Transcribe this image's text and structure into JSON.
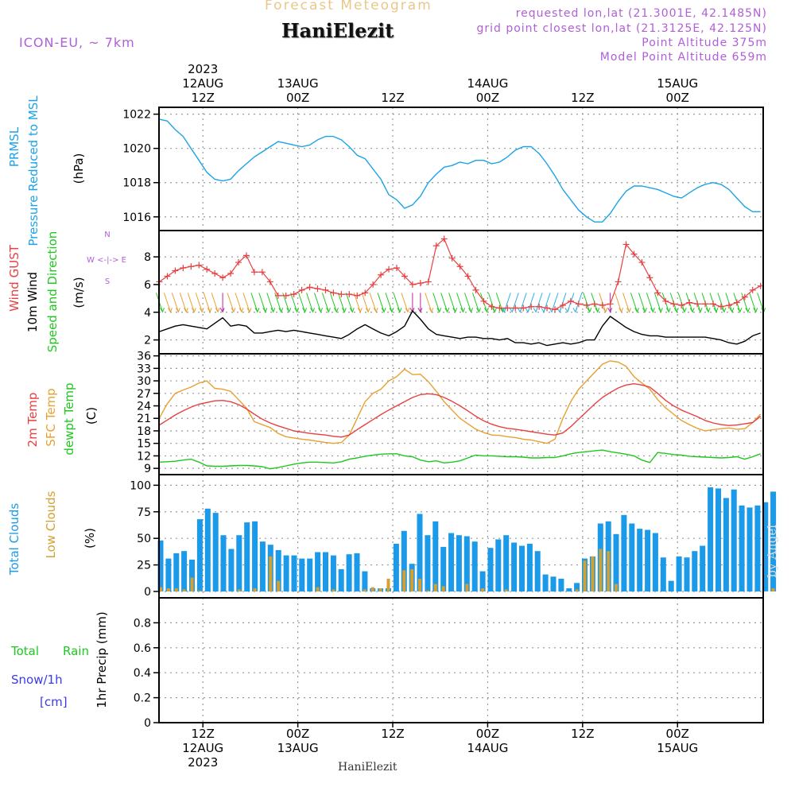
{
  "header": {
    "title": "Forecast Meteogram",
    "station": "HaniElezit",
    "model": "ICON-EU, ~ 7km",
    "requested": "requested lon,lat (21.3001E, 42.1485N)",
    "grid_point": "grid point closest lon,lat (21.3125E, 42.125N)",
    "point_altitude": "Point Altitude 375m",
    "model_altitude": "Model Point Altitude 659m"
  },
  "footer": {
    "station": "HaniElezit",
    "watermark": "by Angel"
  },
  "colors": {
    "pressure": "#1aa3e8",
    "gust": "#e84040",
    "wind": "#000000",
    "dir_green": "#1ec81e",
    "temp2m": "#e84040",
    "sfc": "#e8a030",
    "dewpt": "#1ec81e",
    "total_clouds": "#1a9ae8",
    "low_clouds": "#d4a030",
    "rain": "#1ec81e",
    "snow": "#3a3ae8",
    "purple": "#b05fd6"
  },
  "time_axis": {
    "top_labels": [
      {
        "lines": [
          "2023",
          "12AUG",
          "12Z"
        ]
      },
      {
        "lines": [
          "13AUG",
          "00Z"
        ]
      },
      {
        "lines": [
          "12Z"
        ]
      },
      {
        "lines": [
          "14AUG",
          "00Z"
        ]
      },
      {
        "lines": [
          "12Z"
        ]
      },
      {
        "lines": [
          "15AUG",
          "00Z"
        ]
      }
    ],
    "bottom_labels": [
      {
        "lines": [
          "12Z",
          "12AUG",
          "2023"
        ]
      },
      {
        "lines": [
          "00Z",
          "13AUG"
        ]
      },
      {
        "lines": [
          "12Z"
        ]
      },
      {
        "lines": [
          "00Z",
          "14AUG"
        ]
      },
      {
        "lines": [
          "12Z"
        ]
      },
      {
        "lines": [
          "00Z",
          "15AUG"
        ]
      }
    ]
  },
  "panels": {
    "pressure": {
      "label1": "PRMSL",
      "label2": "Pressure Reduced to MSL",
      "unit": "(hPa)"
    },
    "wind": {
      "label_gust": "Wind GUST",
      "label_wind": "10m Wind",
      "label_dir": "Speed and Direction",
      "unit": "(m/s)",
      "compass_n": "N",
      "compass_s": "S",
      "compass_we": "W <-|-> E"
    },
    "temp": {
      "label1": "2m Temp",
      "label2": "SFC Temp",
      "label3": "dewpt Temp",
      "unit": "(C)"
    },
    "clouds": {
      "label1": "Total Clouds",
      "label2": "Low Clouds",
      "unit": "(%)"
    },
    "precip": {
      "label_total": "Total",
      "label_rain": "Rain",
      "label_snow": "Snow/1h",
      "label_cm": "[cm]",
      "unit": "1hr Precip (mm)"
    }
  },
  "chart_data": [
    {
      "type": "line",
      "name": "pressure",
      "x_hours": [
        0,
        1,
        2,
        3,
        4,
        5,
        6,
        7,
        8,
        9,
        10,
        11,
        12,
        13,
        14,
        15,
        16,
        17,
        18,
        19,
        20,
        21,
        22,
        23,
        24,
        25,
        26,
        27,
        28,
        29,
        30,
        31,
        32,
        33,
        34,
        35,
        36,
        37,
        38,
        39,
        40,
        41,
        42,
        43,
        44,
        45,
        46,
        47,
        48,
        49,
        50,
        51,
        52,
        53,
        54,
        55,
        56,
        57,
        58,
        59,
        60,
        61,
        62,
        63,
        64,
        65,
        66,
        67,
        68,
        69,
        70,
        71,
        72,
        73,
        74,
        75,
        76
      ],
      "ylabel": "(hPa)",
      "ylim": [
        1015.2,
        1022.4
      ],
      "yticks": [
        1016,
        1018,
        1020,
        1022
      ],
      "series": [
        {
          "values": [
            1021.7,
            1021.6,
            1021.1,
            1020.7,
            1020.0,
            1019.3,
            1018.6,
            1018.2,
            1018.1,
            1018.2,
            1018.7,
            1019.1,
            1019.5,
            1019.8,
            1020.1,
            1020.4,
            1020.3,
            1020.2,
            1020.1,
            1020.2,
            1020.5,
            1020.7,
            1020.7,
            1020.5,
            1020.1,
            1019.6,
            1019.4,
            1018.8,
            1018.2,
            1017.3,
            1017.0,
            1016.5,
            1016.7,
            1017.2,
            1018.0,
            1018.5,
            1018.9,
            1019.0,
            1019.2,
            1019.1,
            1019.3,
            1019.3,
            1019.1,
            1019.2,
            1019.5,
            1019.9,
            1020.1,
            1020.1,
            1019.7,
            1019.1,
            1018.4,
            1017.6,
            1017.0,
            1016.4,
            1016.0,
            1015.7,
            1015.7,
            1016.2,
            1016.9,
            1017.5,
            1017.8,
            1017.8,
            1017.7,
            1017.6,
            1017.4,
            1017.2,
            1017.1,
            1017.4,
            1017.7,
            1017.9,
            1018.0,
            1017.9,
            1017.6,
            1017.1,
            1016.6,
            1016.3,
            1016.3
          ]
        }
      ]
    },
    {
      "type": "line",
      "name": "wind",
      "ylabel": "(m/s)",
      "ylim": [
        1.0,
        9.9
      ],
      "yticks": [
        2,
        4,
        6,
        8
      ],
      "series": [
        {
          "name": "Wind GUST",
          "values": [
            6.2,
            6.6,
            7.0,
            7.2,
            7.3,
            7.4,
            7.1,
            6.8,
            6.5,
            6.8,
            7.6,
            8.1,
            6.9,
            6.9,
            6.2,
            5.2,
            5.2,
            5.3,
            5.6,
            5.8,
            5.7,
            5.6,
            5.4,
            5.3,
            5.3,
            5.2,
            5.4,
            6.0,
            6.7,
            7.1,
            7.2,
            6.6,
            6.0,
            6.1,
            6.2,
            8.8,
            9.3,
            7.9,
            7.3,
            6.6,
            5.6,
            4.8,
            4.4,
            4.3,
            4.3,
            4.3,
            4.3,
            4.4,
            4.4,
            4.3,
            4.2,
            4.5,
            4.8,
            4.6,
            4.5,
            4.6,
            4.5,
            4.6,
            6.2,
            8.9,
            8.2,
            7.6,
            6.5,
            5.4,
            4.8,
            4.6,
            4.5,
            4.7,
            4.6,
            4.6,
            4.6,
            4.4,
            4.5,
            4.7,
            5.1,
            5.6,
            5.9
          ]
        },
        {
          "name": "10m Wind",
          "values": [
            2.6,
            2.8,
            3.0,
            3.1,
            3.0,
            2.9,
            2.8,
            3.2,
            3.6,
            3.0,
            3.1,
            3.0,
            2.5,
            2.5,
            2.6,
            2.7,
            2.6,
            2.7,
            2.6,
            2.5,
            2.4,
            2.3,
            2.2,
            2.1,
            2.4,
            2.8,
            3.1,
            2.8,
            2.5,
            2.3,
            2.6,
            3.0,
            4.1,
            3.5,
            2.8,
            2.4,
            2.3,
            2.2,
            2.1,
            2.2,
            2.2,
            2.1,
            2.1,
            2.0,
            2.1,
            1.8,
            1.8,
            1.7,
            1.8,
            1.6,
            1.7,
            1.8,
            1.7,
            1.8,
            2.0,
            2.0,
            3.0,
            3.7,
            3.3,
            2.9,
            2.6,
            2.4,
            2.3,
            2.3,
            2.2,
            2.2,
            2.2,
            2.2,
            2.2,
            2.2,
            2.1,
            2.0,
            1.8,
            1.7,
            1.9,
            2.3,
            2.5
          ]
        }
      ]
    },
    {
      "type": "line",
      "name": "temperature",
      "ylabel": "(C)",
      "ylim": [
        7.5,
        36.5
      ],
      "yticks": [
        9,
        12,
        15,
        18,
        21,
        24,
        27,
        30,
        33,
        36
      ],
      "series": [
        {
          "name": "2m Temp",
          "values": [
            19.4,
            20.6,
            21.8,
            22.8,
            23.7,
            24.4,
            24.8,
            25.2,
            25.3,
            25.0,
            24.3,
            23.3,
            22.0,
            20.8,
            19.9,
            19.2,
            18.6,
            18.0,
            17.7,
            17.4,
            17.2,
            17.0,
            16.7,
            16.5,
            17.0,
            18.3,
            19.5,
            20.7,
            21.9,
            23.0,
            24.0,
            25.0,
            26.0,
            26.7,
            26.9,
            26.7,
            26.0,
            25.1,
            24.0,
            22.8,
            21.5,
            20.4,
            19.6,
            19.0,
            18.6,
            18.4,
            18.1,
            17.8,
            17.5,
            17.2,
            17.0,
            17.5,
            19.0,
            20.8,
            22.6,
            24.4,
            26.0,
            27.2,
            28.3,
            29.0,
            29.3,
            29.0,
            28.5,
            27.0,
            25.3,
            24.0,
            23.0,
            22.2,
            21.4,
            20.5,
            19.9,
            19.5,
            19.3,
            19.4,
            19.7,
            20.0,
            21.5
          ]
        },
        {
          "name": "SFC Temp",
          "values": [
            21.1,
            24.5,
            27.0,
            27.8,
            28.5,
            29.5,
            30.0,
            28.2,
            28.0,
            27.5,
            25.5,
            23.5,
            20.2,
            19.5,
            18.8,
            17.4,
            16.6,
            16.3,
            16.0,
            15.8,
            15.5,
            15.2,
            15.0,
            15.2,
            17.0,
            21.0,
            25.0,
            27.0,
            28.0,
            30.0,
            31.0,
            32.8,
            31.5,
            31.6,
            29.8,
            27.5,
            25.0,
            23.0,
            21.0,
            19.7,
            18.4,
            17.6,
            17.0,
            16.9,
            16.6,
            16.4,
            16.0,
            15.8,
            15.4,
            15.0,
            16.0,
            21.0,
            25.0,
            28.0,
            30.0,
            32.0,
            34.0,
            34.8,
            34.5,
            33.5,
            31.0,
            29.5,
            28.0,
            25.5,
            23.5,
            22.0,
            20.5,
            19.5,
            18.6,
            18.0,
            18.3,
            18.5,
            18.7,
            18.4,
            18.5,
            20.0,
            22.0
          ]
        },
        {
          "name": "dewpt Temp",
          "values": [
            10.5,
            10.6,
            10.7,
            11.0,
            11.2,
            10.5,
            9.6,
            9.5,
            9.5,
            9.6,
            9.7,
            9.7,
            9.6,
            9.4,
            8.9,
            9.2,
            9.6,
            10.0,
            10.3,
            10.5,
            10.5,
            10.4,
            10.3,
            10.6,
            11.2,
            11.5,
            11.9,
            12.2,
            12.4,
            12.5,
            12.5,
            12.0,
            11.8,
            11.0,
            10.6,
            10.8,
            10.3,
            10.5,
            10.8,
            11.5,
            12.2,
            12.0,
            12.0,
            11.9,
            11.8,
            11.8,
            11.7,
            11.5,
            11.5,
            11.6,
            11.6,
            12.0,
            12.5,
            12.8,
            13.0,
            13.2,
            13.4,
            13.0,
            12.7,
            12.4,
            12.0,
            11.0,
            10.4,
            12.8,
            12.6,
            12.3,
            12.2,
            11.9,
            11.8,
            11.7,
            11.6,
            11.5,
            11.6,
            11.8,
            11.2,
            11.8,
            12.5
          ]
        }
      ]
    },
    {
      "type": "bar",
      "name": "clouds",
      "ylabel": "(%)",
      "ylim": [
        -6,
        110
      ],
      "yticks": [
        0,
        25,
        50,
        75,
        100
      ],
      "series": [
        {
          "name": "Total Clouds",
          "values": [
            48,
            31,
            36,
            38,
            30,
            68,
            78,
            74,
            53,
            40,
            53,
            65,
            66,
            47,
            44,
            39,
            34,
            34,
            31,
            31,
            37,
            37,
            34,
            21,
            35,
            36,
            19,
            3,
            3,
            3,
            45,
            57,
            26,
            73,
            53,
            66,
            42,
            55,
            53,
            52,
            47,
            19,
            41,
            49,
            53,
            46,
            43,
            45,
            38,
            16,
            14,
            12,
            3,
            8,
            31,
            33,
            64,
            66,
            54,
            72,
            64,
            59,
            58,
            55,
            32,
            10,
            33,
            32,
            38,
            43,
            98,
            97,
            88,
            96,
            81,
            79,
            81,
            84,
            94
          ]
        },
        {
          "name": "Low Clouds",
          "values": [
            4,
            3,
            3,
            2,
            13,
            1,
            0,
            0,
            0,
            0,
            2,
            0,
            3,
            0,
            33,
            10,
            0,
            0,
            0,
            0,
            4,
            0,
            2,
            0,
            0,
            0,
            2,
            4,
            3,
            12,
            0,
            20,
            21,
            12,
            1,
            7,
            5,
            0,
            0,
            7,
            0,
            3,
            0,
            0,
            2,
            0,
            0,
            0,
            0,
            0,
            0,
            0,
            0,
            2,
            29,
            33,
            40,
            38,
            7,
            0,
            0,
            0,
            0,
            0,
            0,
            0,
            0,
            0,
            0,
            0,
            0,
            0,
            0,
            0,
            0,
            0,
            0,
            0,
            3
          ]
        }
      ]
    },
    {
      "type": "bar",
      "name": "precipitation",
      "ylabel": "1hr Precip (mm)",
      "ylim": [
        0,
        1.0
      ],
      "yticks": [
        0,
        0.2,
        0.4,
        0.6,
        0.8
      ],
      "series": [
        {
          "name": "Total Rain",
          "values": []
        }
      ]
    }
  ]
}
